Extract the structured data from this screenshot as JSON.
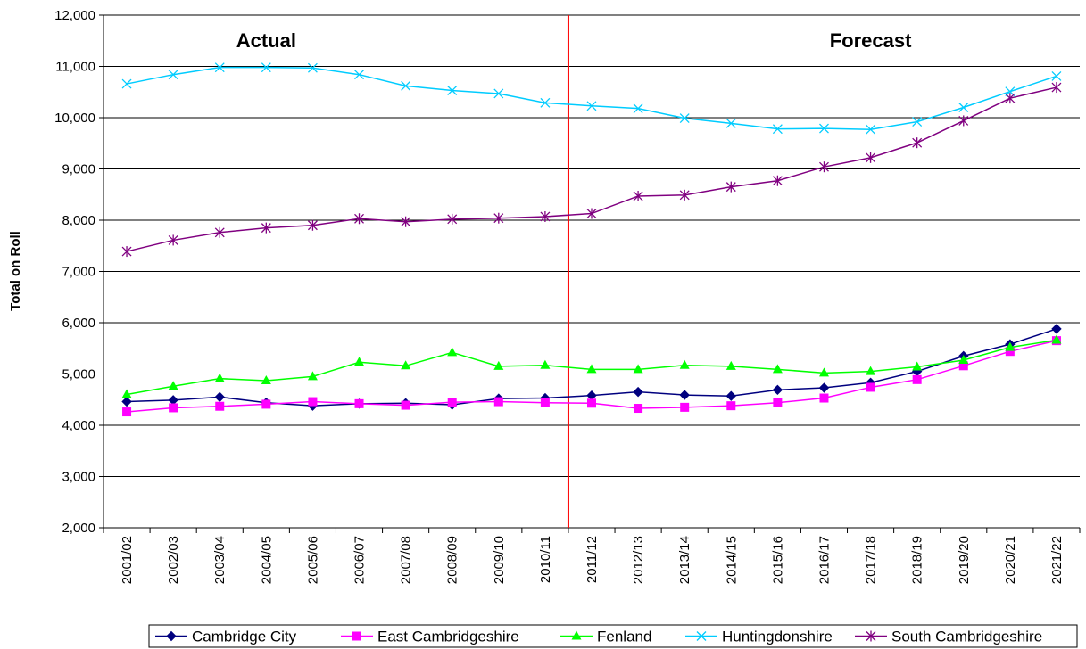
{
  "chart_data": {
    "type": "line",
    "ylabel": "Total on Roll",
    "ylim": [
      2000,
      12000
    ],
    "yticks": [
      2000,
      3000,
      4000,
      5000,
      6000,
      7000,
      8000,
      9000,
      10000,
      11000,
      12000
    ],
    "ytick_labels": [
      "2,000",
      "3,000",
      "4,000",
      "5,000",
      "6,000",
      "7,000",
      "8,000",
      "9,000",
      "10,000",
      "11,000",
      "12,000"
    ],
    "grid": "horizontal",
    "categories": [
      "2001/02",
      "2002/03",
      "2003/04",
      "2004/05",
      "2005/06",
      "2006/07",
      "2007/08",
      "2008/09",
      "2009/10",
      "2010/11",
      "2011/12",
      "2012/13",
      "2013/14",
      "2014/15",
      "2015/16",
      "2016/17",
      "2017/18",
      "2018/19",
      "2019/20",
      "2020/21",
      "2021/22"
    ],
    "annotations": [
      {
        "text": "Actual",
        "at_category": "2004/05"
      },
      {
        "text": "Forecast",
        "at_category": "2017/18"
      }
    ],
    "divider": {
      "between": [
        "2010/11",
        "2011/12"
      ],
      "color": "#ff0000"
    },
    "legend_position": "bottom",
    "series": [
      {
        "name": "Cambridge City",
        "color": "#00007f",
        "marker": "diamond",
        "values": [
          4460,
          4490,
          4550,
          4440,
          4380,
          4420,
          4430,
          4400,
          4520,
          4530,
          4580,
          4650,
          4590,
          4570,
          4690,
          4730,
          4830,
          5050,
          5350,
          5580,
          5880
        ]
      },
      {
        "name": "East Cambridgeshire",
        "color": "#ff00ff",
        "marker": "square",
        "values": [
          4260,
          4340,
          4370,
          4410,
          4460,
          4420,
          4390,
          4450,
          4460,
          4440,
          4430,
          4330,
          4350,
          4380,
          4440,
          4530,
          4740,
          4890,
          5160,
          5440,
          5650
        ]
      },
      {
        "name": "Fenland",
        "color": "#00ff00",
        "marker": "triangle",
        "values": [
          4600,
          4760,
          4910,
          4870,
          4950,
          5230,
          5160,
          5420,
          5150,
          5170,
          5090,
          5090,
          5170,
          5150,
          5090,
          5020,
          5050,
          5140,
          5270,
          5520,
          5660
        ]
      },
      {
        "name": "Huntingdonshire",
        "color": "#00ccff",
        "marker": "x",
        "values": [
          10660,
          10840,
          10980,
          10980,
          10970,
          10840,
          10620,
          10530,
          10470,
          10290,
          10230,
          10180,
          9990,
          9890,
          9780,
          9790,
          9770,
          9920,
          10200,
          10510,
          10810
        ]
      },
      {
        "name": "South Cambridgeshire",
        "color": "#800080",
        "marker": "star",
        "values": [
          7390,
          7610,
          7760,
          7850,
          7900,
          8030,
          7970,
          8020,
          8040,
          8070,
          8130,
          8470,
          8490,
          8650,
          8770,
          9040,
          9220,
          9510,
          9940,
          10380,
          10590
        ]
      }
    ]
  }
}
